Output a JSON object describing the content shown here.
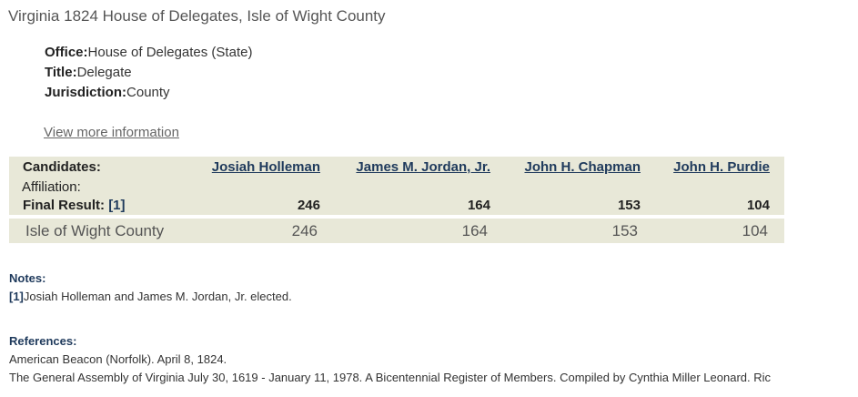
{
  "page_title": "Virginia 1824 House of Delegates, Isle of Wight County",
  "office": {
    "label": "Office:",
    "value": "House of Delegates (State)"
  },
  "title": {
    "label": "Title:",
    "value": "Delegate"
  },
  "jurisdiction": {
    "label": "Jurisdiction:",
    "value": "County"
  },
  "view_more": "View more information",
  "results": {
    "candidates_label": "Candidates:",
    "affiliation_label": "Affiliation:",
    "final_label": "Final Result:",
    "final_note_ref": "[1]",
    "candidates": [
      "Josiah Holleman",
      "James M. Jordan, Jr.",
      "John H. Chapman",
      "John H. Purdie"
    ],
    "final_results": [
      "246",
      "164",
      "153",
      "104"
    ],
    "rows": [
      {
        "name": "Isle of Wight County",
        "values": [
          "246",
          "164",
          "153",
          "104"
        ]
      }
    ]
  },
  "notes": {
    "heading": "Notes:",
    "items": [
      {
        "ref": "[1]",
        "text": "Josiah Holleman and James M. Jordan, Jr. elected."
      }
    ]
  },
  "references": {
    "heading": "References:",
    "items": [
      "American Beacon (Norfolk). April 8, 1824.",
      "The General Assembly of Virginia July 30, 1619 - January 11, 1978. A Bicentennial Register of Members. Compiled by Cynthia Miller Leonard. Ric"
    ]
  }
}
